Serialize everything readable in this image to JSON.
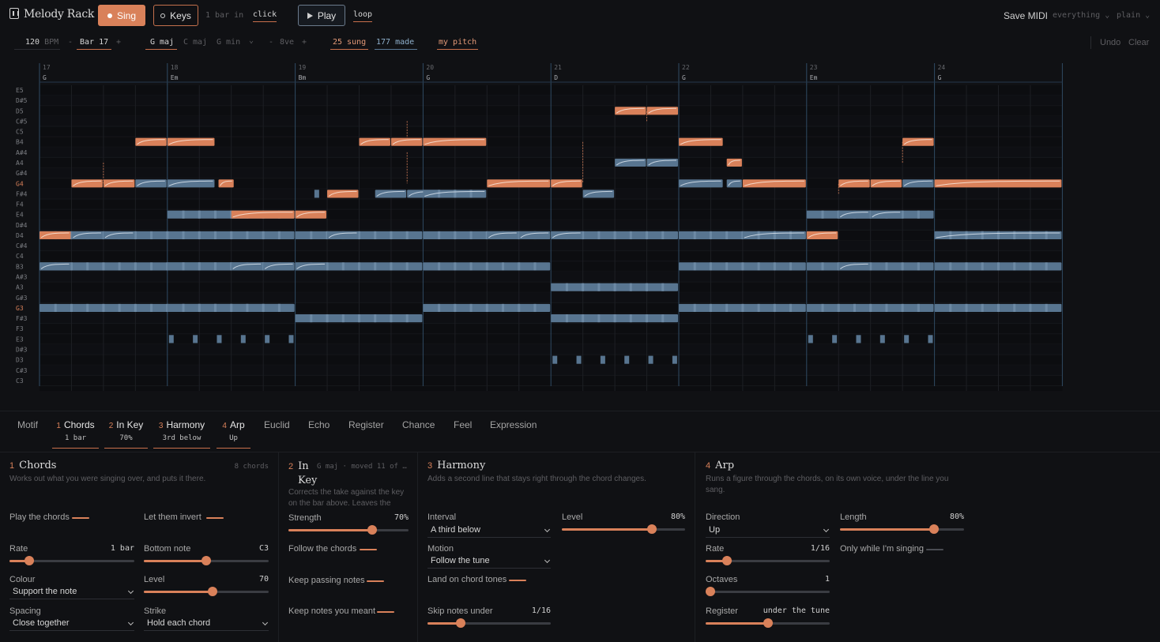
{
  "app": {
    "title": "Melody Rack"
  },
  "toolbar": {
    "sing_label": "Sing",
    "keys_label": "Keys",
    "count_in": "1 bar in",
    "click_label": "click",
    "play_label": "Play",
    "loop_label": "loop",
    "save_label": "Save MIDI",
    "export_scope": "everything",
    "export_style": "plain"
  },
  "transport": {
    "tempo": "120",
    "tempo_unit": "BPM",
    "minus": "-",
    "plus": "+",
    "bar": "Bar 17",
    "keys": [
      "G maj",
      "C maj",
      "G min"
    ],
    "octave": "8ve",
    "sung_count": "25 sung",
    "made_count": "177 made",
    "pitch_label": "my pitch",
    "undo_label": "Undo",
    "clear_label": "Clear"
  },
  "roll": {
    "bars": [
      {
        "num": "17",
        "chord": "G"
      },
      {
        "num": "18",
        "chord": "Em"
      },
      {
        "num": "19",
        "chord": "Bm"
      },
      {
        "num": "20",
        "chord": "G"
      },
      {
        "num": "21",
        "chord": "D"
      },
      {
        "num": "22",
        "chord": "G"
      },
      {
        "num": "23",
        "chord": "Em"
      },
      {
        "num": "24",
        "chord": "G"
      }
    ],
    "pitches": [
      "E5",
      "D#5",
      "D5",
      "C#5",
      "C5",
      "B4",
      "A#4",
      "A4",
      "G#4",
      "G4",
      "F#4",
      "F4",
      "E4",
      "D#4",
      "D4",
      "C#4",
      "C4",
      "B3",
      "A#3",
      "A3",
      "G#3",
      "G3",
      "F#3",
      "F3",
      "E3",
      "D#3",
      "D3",
      "C#3",
      "C3"
    ],
    "highlight_pitches": [
      "G4",
      "G3"
    ],
    "colors": {
      "sung": "#d9815a",
      "made": "#587590",
      "grid": "#1d1f24",
      "bar_line": "#2f4a63"
    }
  },
  "tabs": [
    {
      "label": "Motif"
    },
    {
      "num": "1",
      "label": "Chords",
      "sub": "1 bar"
    },
    {
      "num": "2",
      "label": "In Key",
      "sub": "70%"
    },
    {
      "num": "3",
      "label": "Harmony",
      "sub": "3rd below"
    },
    {
      "num": "4",
      "label": "Arp",
      "sub": "Up"
    },
    {
      "label": "Euclid"
    },
    {
      "label": "Echo"
    },
    {
      "label": "Register"
    },
    {
      "label": "Chance"
    },
    {
      "label": "Feel"
    },
    {
      "label": "Expression"
    }
  ],
  "chords_panel": {
    "num": "1",
    "title": "Chords",
    "meta": "8 chords",
    "desc": "Works out what you were singing over, and puts it there.",
    "play_chords": "Play the chords",
    "let_invert": "Let them invert",
    "rate_label": "Rate",
    "rate_value": "1 bar",
    "rate_level": 0.16,
    "bottom_label": "Bottom note",
    "bottom_value": "C3",
    "bottom_level": 0.5,
    "colour_label": "Colour",
    "colour_value": "Support the note",
    "level_label": "Level",
    "level_value": "70",
    "level_level": 0.55,
    "spacing_label": "Spacing",
    "spacing_value": "Close together",
    "strike_label": "Strike",
    "strike_value": "Hold each chord"
  },
  "inkey_panel": {
    "num": "2",
    "title_a": "In",
    "title_b": "Key",
    "meta": "G maj · moved 11 of …",
    "desc_a": "Corrects the take against the key",
    "desc_b": "on the bar above. Leaves the",
    "strength_label": "Strength",
    "strength_value": "70%",
    "strength_level": 0.7,
    "follow_chords": "Follow the chords",
    "keep_passing": "Keep passing notes",
    "keep_meant": "Keep notes you meant"
  },
  "harmony_panel": {
    "num": "3",
    "title": "Harmony",
    "desc": "Adds a second line that stays right through the chord changes.",
    "interval_label": "Interval",
    "interval_value": "A third below",
    "level_label": "Level",
    "level_value": "80%",
    "level_level": 0.73,
    "motion_label": "Motion",
    "motion_value": "Follow the tune",
    "land_label": "Land on chord tones",
    "skip_label": "Skip notes under",
    "skip_value": "1/16",
    "skip_level": 0.27
  },
  "arp_panel": {
    "num": "4",
    "title": "Arp",
    "desc_a": "Runs a figure through the chords, on its own voice, under the line you",
    "desc_b": "sang.",
    "direction_label": "Direction",
    "direction_value": "Up",
    "length_label": "Length",
    "length_value": "80%",
    "length_level": 0.76,
    "rate_label": "Rate",
    "rate_value": "1/16",
    "rate_level": 0.17,
    "only_singing": "Only while I'm singing",
    "octaves_label": "Octaves",
    "octaves_value": "1",
    "octaves_level": 0.04,
    "register_label": "Register",
    "register_value": "under the tune",
    "register_level": 0.5
  }
}
